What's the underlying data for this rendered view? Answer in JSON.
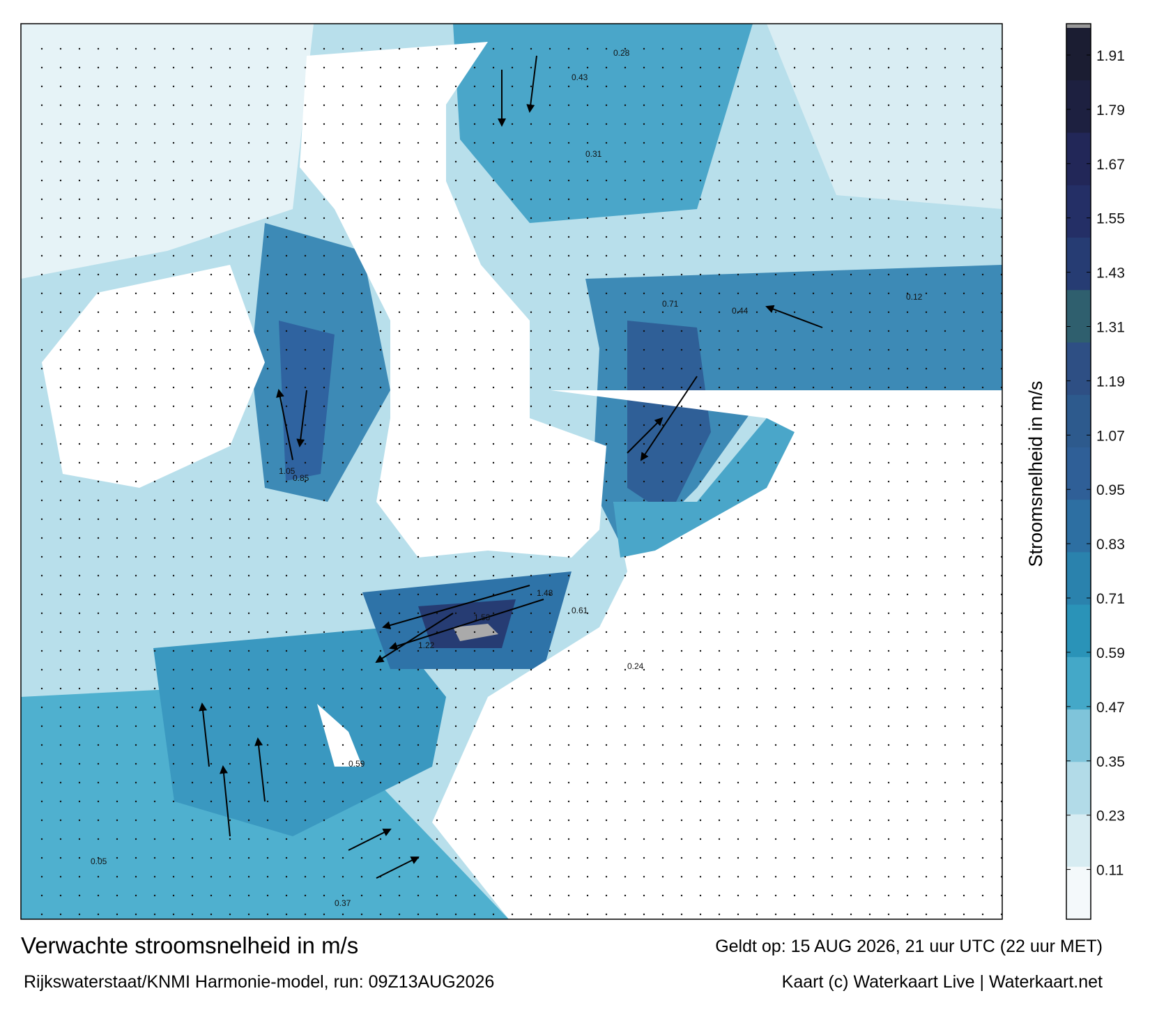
{
  "title": "Verwachte stroomsnelheid in m/s",
  "valid_time": "Geldt op: 15 AUG 2026, 21 uur UTC (22 uur MET)",
  "model": "Rijkswaterstaat/KNMI Harmonie-model, run: 09Z13AUG2026",
  "credit": "Kaart (c) Waterkaart Live | Waterkaart.net",
  "colorbar": {
    "label": "Stroomsnelheid in m/s",
    "lim": [
      0,
      1.97
    ],
    "ticks": [
      0.11,
      0.23,
      0.35,
      0.47,
      0.59,
      0.71,
      0.83,
      0.95,
      1.07,
      1.19,
      1.31,
      1.43,
      1.55,
      1.67,
      1.79,
      1.91
    ],
    "colors": [
      "#f4f9fb",
      "#d7ecf2",
      "#b2dbe8",
      "#7fc4da",
      "#44a8c8",
      "#2a93b8",
      "#2a82ad",
      "#2d6fa2",
      "#2f5f97",
      "#2d5a8d",
      "#2e4f84",
      "#2f5f6e",
      "#263c73",
      "#242f66",
      "#222758",
      "#1d2040",
      "#1b1d32"
    ]
  },
  "map_labels": [
    "0.28",
    "0.43",
    "0.31",
    "0.85",
    "1.05",
    "0.71",
    "0.44",
    "1.48",
    "1.53",
    "1.22",
    "0.61",
    "0.37",
    "0.59",
    "0.24",
    "0.12",
    "0.05"
  ]
}
